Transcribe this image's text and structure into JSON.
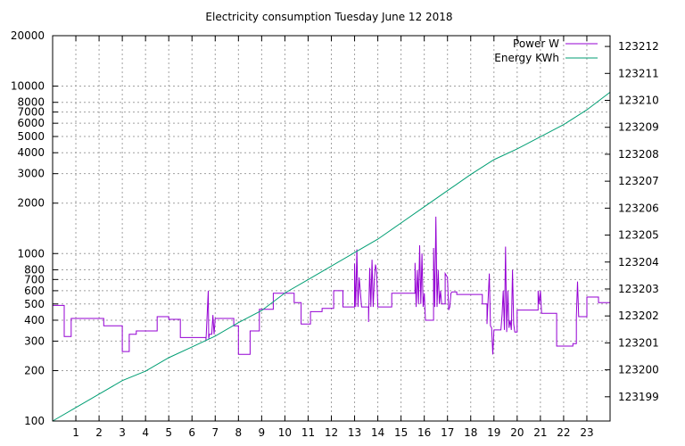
{
  "chart_data": {
    "type": "line",
    "title": "Electricity consumption Tuesday June 12 2018",
    "x_axis": {
      "range": [
        0,
        24
      ],
      "tick_labels": [
        "1",
        "2",
        "3",
        "4",
        "5",
        "6",
        "7",
        "8",
        "9",
        "10",
        "11",
        "12",
        "13",
        "14",
        "15",
        "16",
        "17",
        "18",
        "19",
        "20",
        "21",
        "22",
        "23"
      ]
    },
    "y_left": {
      "scale": "log",
      "range": [
        100,
        20000
      ],
      "ticks": [
        100,
        200,
        300,
        400,
        500,
        600,
        700,
        800,
        1000,
        2000,
        3000,
        4000,
        5000,
        6000,
        7000,
        8000,
        10000,
        20000
      ],
      "tick_labels": [
        "100",
        "200",
        "300",
        "400",
        "500",
        "600",
        "700",
        "800",
        "1000",
        "2000",
        "3000",
        "4000",
        "5000",
        "6000",
        "7000",
        "8000",
        "10000",
        "20000"
      ]
    },
    "y_right": {
      "scale": "linear",
      "range": [
        123198.1,
        123212.4
      ],
      "ticks": [
        123199,
        123200,
        123201,
        123202,
        123203,
        123204,
        123205,
        123206,
        123207,
        123208,
        123209,
        123210,
        123211,
        123212
      ],
      "tick_labels": [
        "123199",
        "123200",
        "123201",
        "123202",
        "123203",
        "123204",
        "123205",
        "123206",
        "123207",
        "123208",
        "123209",
        "123210",
        "123211",
        "123212"
      ]
    },
    "grid": true,
    "legend_placement": "top-right",
    "series": [
      {
        "name": "Power W",
        "axis": "left",
        "color": "#9400d3",
        "points": [
          [
            0.0,
            490
          ],
          [
            0.5,
            490
          ],
          [
            0.5,
            320
          ],
          [
            0.8,
            320
          ],
          [
            0.8,
            410
          ],
          [
            2.2,
            410
          ],
          [
            2.2,
            370
          ],
          [
            3.0,
            370
          ],
          [
            3.0,
            260
          ],
          [
            3.3,
            260
          ],
          [
            3.3,
            330
          ],
          [
            3.6,
            330
          ],
          [
            3.6,
            345
          ],
          [
            4.5,
            345
          ],
          [
            4.5,
            420
          ],
          [
            5.0,
            420
          ],
          [
            5.0,
            405
          ],
          [
            5.5,
            405
          ],
          [
            5.5,
            315
          ],
          [
            6.6,
            315
          ],
          [
            6.6,
            300
          ],
          [
            6.7,
            600
          ],
          [
            6.72,
            310
          ],
          [
            6.75,
            330
          ],
          [
            6.85,
            330
          ],
          [
            6.9,
            430
          ],
          [
            6.95,
            330
          ],
          [
            7.0,
            410
          ],
          [
            7.8,
            410
          ],
          [
            7.8,
            370
          ],
          [
            8.0,
            370
          ],
          [
            8.0,
            250
          ],
          [
            8.5,
            250
          ],
          [
            8.5,
            345
          ],
          [
            8.9,
            345
          ],
          [
            8.9,
            465
          ],
          [
            9.5,
            465
          ],
          [
            9.5,
            580
          ],
          [
            10.4,
            580
          ],
          [
            10.4,
            510
          ],
          [
            10.7,
            510
          ],
          [
            10.7,
            380
          ],
          [
            11.1,
            380
          ],
          [
            11.1,
            450
          ],
          [
            11.6,
            450
          ],
          [
            11.6,
            470
          ],
          [
            12.1,
            470
          ],
          [
            12.1,
            600
          ],
          [
            12.5,
            600
          ],
          [
            12.5,
            480
          ],
          [
            13.0,
            480
          ],
          [
            13.0,
            870
          ],
          [
            13.05,
            480
          ],
          [
            13.1,
            1060
          ],
          [
            13.15,
            480
          ],
          [
            13.2,
            720
          ],
          [
            13.3,
            480
          ],
          [
            13.6,
            480
          ],
          [
            13.6,
            390
          ],
          [
            13.65,
            820
          ],
          [
            13.7,
            480
          ],
          [
            13.75,
            920
          ],
          [
            13.8,
            480
          ],
          [
            13.85,
            700
          ],
          [
            13.9,
            860
          ],
          [
            13.95,
            780
          ],
          [
            14.0,
            480
          ],
          [
            14.6,
            480
          ],
          [
            14.6,
            580
          ],
          [
            15.6,
            580
          ],
          [
            15.6,
            880
          ],
          [
            15.65,
            480
          ],
          [
            15.7,
            800
          ],
          [
            15.75,
            500
          ],
          [
            15.8,
            1120
          ],
          [
            15.85,
            500
          ],
          [
            15.9,
            1000
          ],
          [
            15.95,
            480
          ],
          [
            16.0,
            580
          ],
          [
            16.05,
            400
          ],
          [
            16.4,
            400
          ],
          [
            16.4,
            1080
          ],
          [
            16.45,
            480
          ],
          [
            16.5,
            1660
          ],
          [
            16.55,
            480
          ],
          [
            16.6,
            800
          ],
          [
            16.65,
            500
          ],
          [
            16.7,
            600
          ],
          [
            16.75,
            500
          ],
          [
            16.8,
            500
          ],
          [
            16.9,
            500
          ],
          [
            16.9,
            760
          ],
          [
            17.0,
            720
          ],
          [
            17.05,
            460
          ],
          [
            17.1,
            480
          ],
          [
            17.15,
            580
          ],
          [
            17.2,
            590
          ],
          [
            17.4,
            590
          ],
          [
            17.4,
            570
          ],
          [
            18.5,
            570
          ],
          [
            18.5,
            500
          ],
          [
            18.7,
            500
          ],
          [
            18.7,
            380
          ],
          [
            18.8,
            760
          ],
          [
            18.85,
            370
          ],
          [
            18.9,
            360
          ],
          [
            18.95,
            250
          ],
          [
            19.0,
            350
          ],
          [
            19.3,
            350
          ],
          [
            19.35,
            430
          ],
          [
            19.4,
            600
          ],
          [
            19.45,
            350
          ],
          [
            19.5,
            1100
          ],
          [
            19.55,
            340
          ],
          [
            19.6,
            600
          ],
          [
            19.65,
            360
          ],
          [
            19.7,
            400
          ],
          [
            19.75,
            350
          ],
          [
            19.8,
            800
          ],
          [
            19.85,
            380
          ],
          [
            19.9,
            340
          ],
          [
            20.0,
            340
          ],
          [
            20.0,
            460
          ],
          [
            20.9,
            460
          ],
          [
            20.9,
            600
          ],
          [
            20.95,
            500
          ],
          [
            21.0,
            600
          ],
          [
            21.05,
            440
          ],
          [
            21.7,
            440
          ],
          [
            21.7,
            280
          ],
          [
            22.4,
            280
          ],
          [
            22.4,
            290
          ],
          [
            22.55,
            290
          ],
          [
            22.55,
            420
          ],
          [
            22.6,
            680
          ],
          [
            22.65,
            420
          ],
          [
            23.0,
            420
          ],
          [
            23.0,
            550
          ],
          [
            23.5,
            550
          ],
          [
            23.5,
            510
          ],
          [
            24.0,
            510
          ]
        ]
      },
      {
        "name": "Energy KWh",
        "axis": "right",
        "color": "#009e73",
        "points": [
          [
            0.0,
            123198.1
          ],
          [
            1.0,
            123198.6
          ],
          [
            2.0,
            123199.1
          ],
          [
            3.0,
            123199.6
          ],
          [
            4.0,
            123199.95
          ],
          [
            5.0,
            123200.45
          ],
          [
            6.0,
            123200.85
          ],
          [
            7.0,
            123201.25
          ],
          [
            8.0,
            123201.75
          ],
          [
            9.0,
            123202.2
          ],
          [
            10.0,
            123202.85
          ],
          [
            11.0,
            123203.35
          ],
          [
            12.0,
            123203.85
          ],
          [
            13.0,
            123204.35
          ],
          [
            14.0,
            123204.85
          ],
          [
            15.0,
            123205.45
          ],
          [
            16.0,
            123206.05
          ],
          [
            17.0,
            123206.65
          ],
          [
            18.0,
            123207.25
          ],
          [
            19.0,
            123207.8
          ],
          [
            20.0,
            123208.2
          ],
          [
            21.0,
            123208.65
          ],
          [
            22.0,
            123209.1
          ],
          [
            23.0,
            123209.65
          ],
          [
            24.0,
            123210.3
          ]
        ]
      }
    ]
  }
}
